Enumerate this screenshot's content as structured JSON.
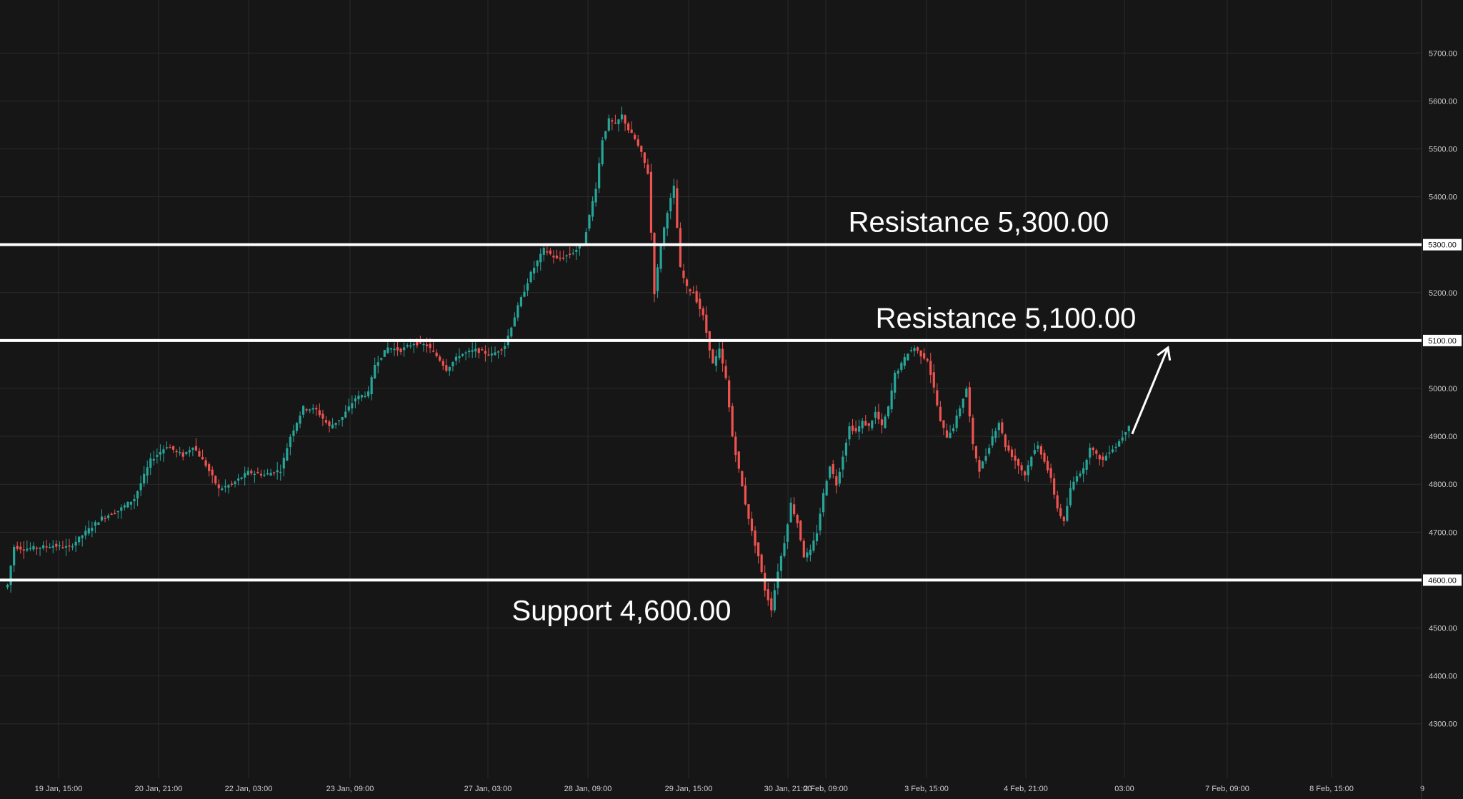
{
  "chart_data": {
    "type": "candlestick",
    "y_axis": {
      "ylim": [
        4240,
        5760
      ],
      "ticks": [
        "4300.00",
        "4400.00",
        "4500.00",
        "4600.00",
        "4700.00",
        "4800.00",
        "4900.00",
        "5000.00",
        "5100.00",
        "5200.00",
        "5300.00",
        "5400.00",
        "5500.00",
        "5600.00",
        "5700.00"
      ],
      "position": "right"
    },
    "x_axis": {
      "ticks": [
        "19 Jan, 15:00",
        "20 Jan, 21:00",
        "22 Jan, 03:00",
        "23 Jan, 09:00",
        "27 Jan, 03:00",
        "28 Jan, 09:00",
        "29 Jan, 15:00",
        "30 Jan, 21:00",
        "2 Feb, 09:00",
        "3 Feb, 15:00",
        "4 Feb, 21:00",
        "03:00",
        "7 Feb, 09:00",
        "8 Feb, 15:00",
        "9"
      ]
    },
    "grid": true,
    "colors": {
      "up": "#26a69a",
      "down": "#ef5350",
      "background": "#161616",
      "grid": "#2b2b2b",
      "levels": "#ffffff"
    },
    "levels": [
      {
        "label": "Resistance 5,300.00",
        "value": 5300,
        "tag": "5300.00"
      },
      {
        "label": "Resistance 5,100.00",
        "value": 5100,
        "tag": "5100.00"
      },
      {
        "label": "Support 4,600.00",
        "value": 4600,
        "tag": "4600.00"
      }
    ],
    "price_path": [
      [
        0,
        4585
      ],
      [
        1,
        4590
      ],
      [
        3,
        4670
      ],
      [
        6,
        4665
      ],
      [
        10,
        4668
      ],
      [
        15,
        4672
      ],
      [
        20,
        4668
      ],
      [
        25,
        4700
      ],
      [
        30,
        4730
      ],
      [
        35,
        4745
      ],
      [
        40,
        4770
      ],
      [
        45,
        4850
      ],
      [
        50,
        4880
      ],
      [
        55,
        4860
      ],
      [
        58,
        4880
      ],
      [
        62,
        4840
      ],
      [
        66,
        4790
      ],
      [
        70,
        4800
      ],
      [
        75,
        4825
      ],
      [
        80,
        4820
      ],
      [
        85,
        4830
      ],
      [
        88,
        4900
      ],
      [
        92,
        4960
      ],
      [
        96,
        4955
      ],
      [
        100,
        4920
      ],
      [
        104,
        4940
      ],
      [
        108,
        4980
      ],
      [
        112,
        4990
      ],
      [
        114,
        5050
      ],
      [
        118,
        5085
      ],
      [
        122,
        5080
      ],
      [
        126,
        5095
      ],
      [
        130,
        5090
      ],
      [
        134,
        5060
      ],
      [
        136,
        5040
      ],
      [
        140,
        5070
      ],
      [
        145,
        5080
      ],
      [
        150,
        5070
      ],
      [
        154,
        5090
      ],
      [
        158,
        5170
      ],
      [
        162,
        5240
      ],
      [
        166,
        5290
      ],
      [
        170,
        5270
      ],
      [
        174,
        5280
      ],
      [
        178,
        5300
      ],
      [
        182,
        5420
      ],
      [
        184,
        5520
      ],
      [
        186,
        5560
      ],
      [
        188,
        5550
      ],
      [
        190,
        5570
      ],
      [
        192,
        5540
      ],
      [
        194,
        5520
      ],
      [
        196,
        5490
      ],
      [
        198,
        5450
      ],
      [
        200,
        5200
      ],
      [
        202,
        5300
      ],
      [
        204,
        5370
      ],
      [
        206,
        5420
      ],
      [
        208,
        5250
      ],
      [
        210,
        5210
      ],
      [
        212,
        5200
      ],
      [
        215,
        5150
      ],
      [
        218,
        5050
      ],
      [
        220,
        5080
      ],
      [
        222,
        5020
      ],
      [
        224,
        4900
      ],
      [
        226,
        4830
      ],
      [
        228,
        4760
      ],
      [
        230,
        4700
      ],
      [
        232,
        4650
      ],
      [
        234,
        4580
      ],
      [
        236,
        4540
      ],
      [
        238,
        4620
      ],
      [
        240,
        4680
      ],
      [
        242,
        4760
      ],
      [
        244,
        4720
      ],
      [
        246,
        4650
      ],
      [
        248,
        4660
      ],
      [
        250,
        4700
      ],
      [
        252,
        4780
      ],
      [
        254,
        4840
      ],
      [
        256,
        4800
      ],
      [
        258,
        4860
      ],
      [
        260,
        4920
      ],
      [
        262,
        4910
      ],
      [
        264,
        4930
      ],
      [
        266,
        4920
      ],
      [
        268,
        4950
      ],
      [
        270,
        4920
      ],
      [
        272,
        4960
      ],
      [
        274,
        5030
      ],
      [
        276,
        5050
      ],
      [
        278,
        5075
      ],
      [
        280,
        5085
      ],
      [
        282,
        5070
      ],
      [
        284,
        5060
      ],
      [
        286,
        5000
      ],
      [
        288,
        4930
      ],
      [
        290,
        4900
      ],
      [
        292,
        4920
      ],
      [
        294,
        4960
      ],
      [
        296,
        5000
      ],
      [
        298,
        4880
      ],
      [
        300,
        4830
      ],
      [
        302,
        4860
      ],
      [
        304,
        4900
      ],
      [
        306,
        4930
      ],
      [
        308,
        4880
      ],
      [
        310,
        4860
      ],
      [
        312,
        4840
      ],
      [
        314,
        4820
      ],
      [
        316,
        4860
      ],
      [
        318,
        4880
      ],
      [
        320,
        4850
      ],
      [
        322,
        4810
      ],
      [
        324,
        4750
      ],
      [
        326,
        4720
      ],
      [
        328,
        4790
      ],
      [
        330,
        4820
      ],
      [
        332,
        4830
      ],
      [
        334,
        4880
      ],
      [
        336,
        4860
      ],
      [
        338,
        4850
      ],
      [
        340,
        4870
      ],
      [
        342,
        4880
      ],
      [
        344,
        4900
      ],
      [
        346,
        4925
      ]
    ],
    "arrow": {
      "from": [
        347,
        4905
      ],
      "to": [
        358,
        5085
      ]
    }
  }
}
